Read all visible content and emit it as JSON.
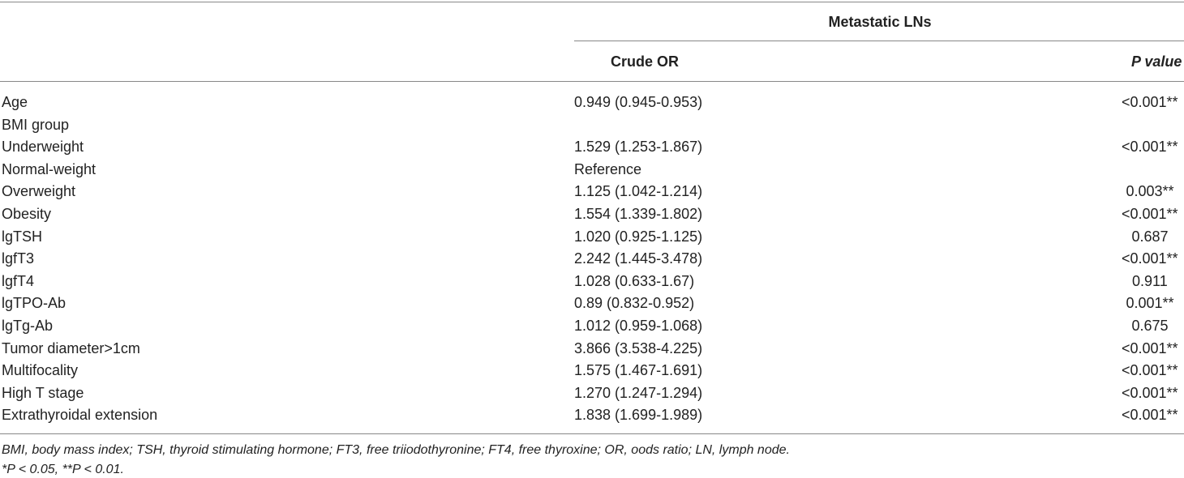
{
  "table": {
    "group_header": "Metastatic LNs",
    "columns": [
      "Crude OR",
      "P value"
    ],
    "rows": [
      {
        "label": "Age",
        "or": "0.949 (0.945-0.953)",
        "p": "<0.001**"
      },
      {
        "label": "BMI group"
      },
      {
        "label": "Underweight",
        "or": "1.529 (1.253-1.867)",
        "p": "<0.001**"
      },
      {
        "label": "Normal-weight",
        "or": "Reference"
      },
      {
        "label": "Overweight",
        "or": "1.125 (1.042-1.214)",
        "p": "0.003**"
      },
      {
        "label": "Obesity",
        "or": "1.554 (1.339-1.802)",
        "p": "<0.001**"
      },
      {
        "label": "lgTSH",
        "or": "1.020 (0.925-1.125)",
        "p": "0.687"
      },
      {
        "label": "lgfT3",
        "or": "2.242 (1.445-3.478)",
        "p": "<0.001**"
      },
      {
        "label": "lgfT4",
        "or": "1.028 (0.633-1.67)",
        "p": "0.911"
      },
      {
        "label": "lgTPO-Ab",
        "or": "0.89 (0.832-0.952)",
        "p": "0.001**"
      },
      {
        "label": "lgTg-Ab",
        "or": "1.012 (0.959-1.068)",
        "p": "0.675"
      },
      {
        "label": "Tumor diameter>1cm",
        "or": "3.866 (3.538-4.225)",
        "p": "<0.001**"
      },
      {
        "label": "Multifocality",
        "or": "1.575 (1.467-1.691)",
        "p": "<0.001**"
      },
      {
        "label": "High T stage",
        "or": "1.270 (1.247-1.294)",
        "p": "<0.001**"
      },
      {
        "label": "Extrathyroidal extension",
        "or": "1.838 (1.699-1.989)",
        "p": "<0.001**"
      }
    ],
    "footnotes": [
      "BMI, body mass index; TSH, thyroid stimulating hormone; FT3, free triiodothyronine; FT4, free thyroxine; OR, oods ratio; LN, lymph node.",
      "*P < 0.05, **P < 0.01."
    ]
  }
}
